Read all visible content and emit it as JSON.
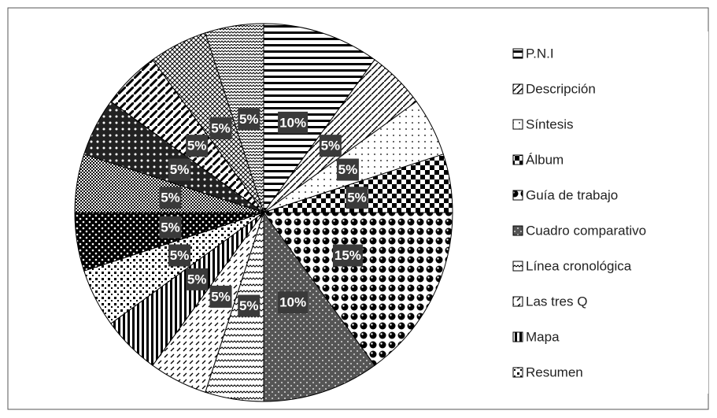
{
  "chart_data": {
    "type": "pie",
    "categories": [
      "P.N.I",
      "Descripción",
      "Síntesis",
      "Álbum",
      "Guía de trabajo",
      "Cuadro comparativo",
      "Línea cronológica",
      "Las tres Q",
      "Mapa",
      "Resumen",
      null,
      null,
      null,
      null,
      null,
      null
    ],
    "values": [
      10,
      5,
      5,
      5,
      15,
      10,
      5,
      5,
      5,
      5,
      5,
      5,
      5,
      5,
      5,
      5
    ],
    "value_labels": [
      "10%",
      "5%",
      "5%",
      "5%",
      "15%",
      "10%",
      "5%",
      "5%",
      "5%",
      "5%",
      "5%",
      "5%",
      "5%",
      "5%",
      "5%",
      "5%"
    ]
  }
}
